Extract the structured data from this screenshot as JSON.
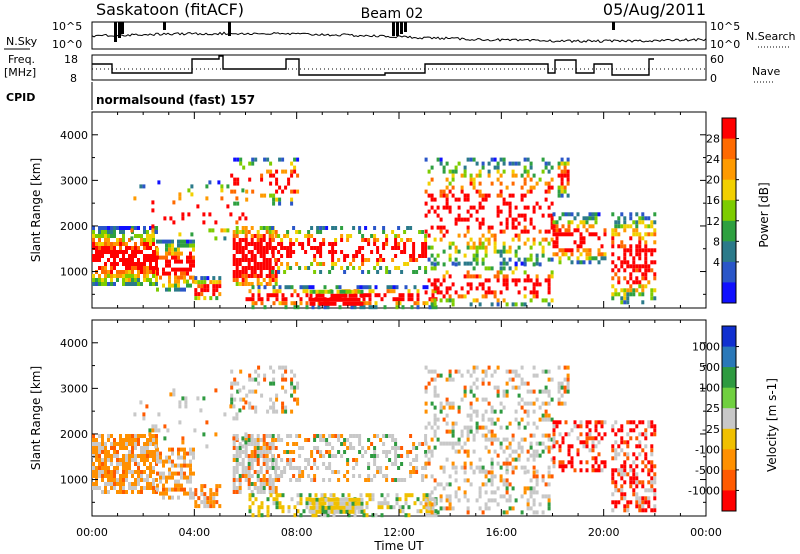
{
  "header": {
    "station": "Saskatoon (fitACF)",
    "beam": "Beam 02",
    "date": "05/Aug/2011"
  },
  "noise_panel": {
    "left_label": "N.Sky",
    "right_label": "N.Search",
    "left_ticks": [
      "10^5",
      "10^0"
    ],
    "right_ticks": [
      "10^5",
      "10^0"
    ]
  },
  "freq_panel": {
    "left_label_line1": "Freq.",
    "left_label_line2": "[MHz]",
    "right_label": "Nave",
    "left_ticks": [
      "18",
      "8"
    ],
    "right_ticks": [
      "60",
      "0"
    ]
  },
  "cpid": {
    "label": "CPID",
    "value": "normalsound (fast) 157"
  },
  "chart_data": [
    {
      "type": "heatmap",
      "quantity": "Power",
      "xlabel": "",
      "ylabel": "Slant Range [km]",
      "colorbar_label": "Power [dB]",
      "colorbar_ticks": [
        "28",
        "24",
        "20",
        "16",
        "12",
        "8",
        "4"
      ],
      "colorbar_colors": [
        "#ff0000",
        "#ff6a00",
        "#ff9a00",
        "#f2d000",
        "#7dcc00",
        "#2ea040",
        "#2b7a8a",
        "#2a56c8",
        "#1010ff"
      ],
      "xlim": [
        0,
        24
      ],
      "ylim": [
        200,
        4500
      ],
      "y_ticks": [
        "1000",
        "2000",
        "3000",
        "4000"
      ],
      "x_ticks": [
        "00:00",
        "04:00",
        "08:00",
        "12:00",
        "16:00",
        "20:00",
        "00:00"
      ]
    },
    {
      "type": "heatmap",
      "quantity": "Velocity",
      "xlabel": "Time UT",
      "ylabel": "Slant Range [km]",
      "colorbar_label": "Velocity [m s-1]",
      "colorbar_ticks": [
        "1000",
        "500",
        "100",
        "25",
        "-25",
        "-100",
        "-500",
        "-1000"
      ],
      "colorbar_colors": [
        "#1030d0",
        "#2a78b8",
        "#2e9a40",
        "#70d040",
        "#c8c8c8",
        "#f0c000",
        "#ff9000",
        "#ff5a00",
        "#ff0000"
      ],
      "xlim": [
        0,
        24
      ],
      "ylim": [
        200,
        4500
      ],
      "y_ticks": [
        "1000",
        "2000",
        "3000",
        "4000"
      ],
      "x_ticks": [
        "00:00",
        "04:00",
        "08:00",
        "12:00",
        "16:00",
        "20:00",
        "00:00"
      ]
    }
  ]
}
